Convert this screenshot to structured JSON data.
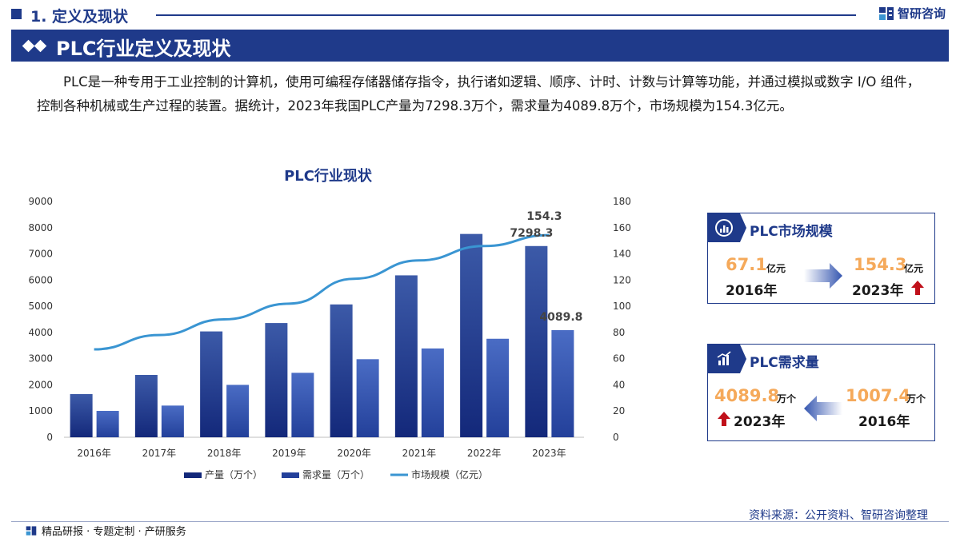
{
  "header": {
    "section": "1. 定义及现状",
    "brand": "智研咨询",
    "banner_title": "PLC行业定义及现状"
  },
  "intro": "PLC是一种专用于工业控制的计算机，使用可编程存储器储存指令，执行诸如逻辑、顺序、计时、计数与计算等功能，并通过模拟或数字 I/O 组件，控制各种机械或生产过程的装置。据统计，2023年我国PLC产量为7298.3万个，需求量为4089.8万个，市场规模为154.3亿元。",
  "chart_data": {
    "type": "bar",
    "title": "PLC行业现状",
    "categories": [
      "2016年",
      "2017年",
      "2018年",
      "2019年",
      "2020年",
      "2021年",
      "2022年",
      "2023年"
    ],
    "series": [
      {
        "name": "产量（万个）",
        "type": "bar",
        "axis": "left",
        "color": "#1f3a8a",
        "values": [
          1650,
          2380,
          4040,
          4360,
          5070,
          6180,
          7760,
          7298.3
        ]
      },
      {
        "name": "需求量（万个）",
        "type": "bar",
        "axis": "left",
        "color": "#3556b0",
        "values": [
          1007.4,
          1210,
          2000,
          2460,
          2980,
          3390,
          3760,
          4089.8
        ]
      },
      {
        "name": "市场规模（亿元）",
        "type": "line",
        "axis": "right",
        "color": "#3a95d2",
        "values": [
          67.1,
          78,
          90,
          102,
          121,
          135,
          146,
          154.3
        ]
      }
    ],
    "left_axis": {
      "min": 0,
      "max": 9000,
      "ticks": [
        "0",
        "1000",
        "2000",
        "3000",
        "4000",
        "5000",
        "6000",
        "7000",
        "8000",
        "9000"
      ]
    },
    "right_axis": {
      "min": 0,
      "max": 180,
      "ticks": [
        "0",
        "20",
        "40",
        "60",
        "80",
        "100",
        "120",
        "140",
        "160",
        "180"
      ]
    },
    "data_labels": {
      "production_2023": "7298.3",
      "demand_2023": "4089.8",
      "market_2023": "154.3"
    },
    "legend_position": "bottom",
    "grid": false
  },
  "cards": {
    "market": {
      "title": "PLC市场规模",
      "from_value": "67.1",
      "from_unit": "亿元",
      "from_year": "2016年",
      "to_value": "154.3",
      "to_unit": "亿元",
      "to_year": "2023年",
      "icon": "chart-circle-icon"
    },
    "demand": {
      "title": "PLC需求量",
      "left_value": "4089.8",
      "left_unit": "万个",
      "left_year": "2023年",
      "right_value": "1007.4",
      "right_unit": "万个",
      "right_year": "2016年",
      "icon": "trend-bars-icon"
    }
  },
  "footer": {
    "services": "精品研报 · 专题定制 · 产研服务",
    "source": "资料来源：公开资料、智研咨询整理"
  }
}
